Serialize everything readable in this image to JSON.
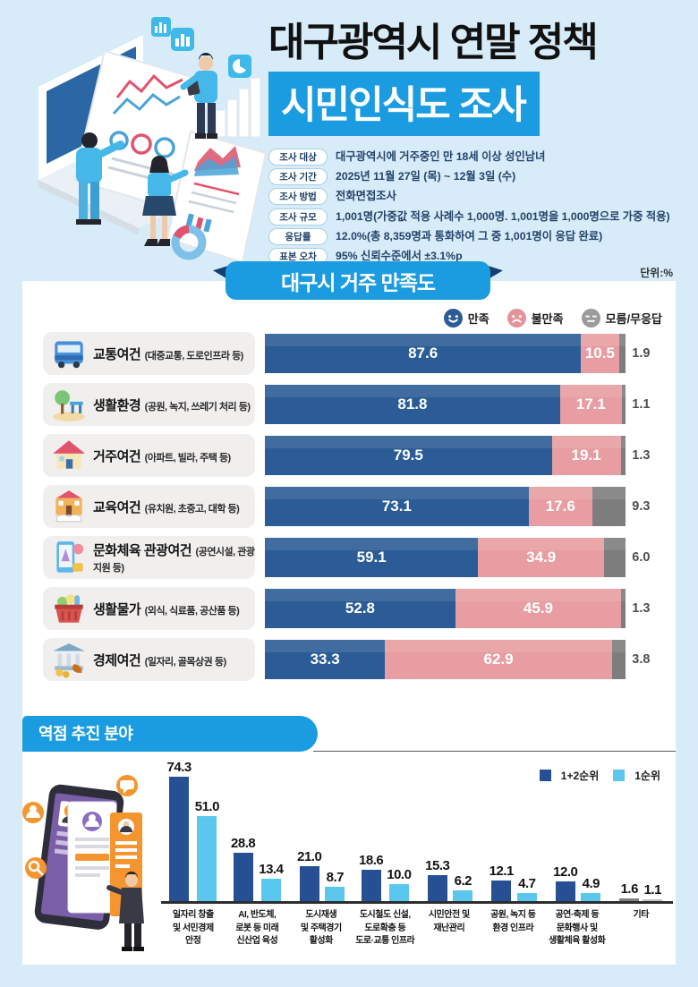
{
  "header": {
    "title_line1": "대구광역시 연말 정책",
    "title_line2": "시민인식도 조사",
    "info": [
      {
        "label": "조사 대상",
        "value": "대구광역시에 거주중인 만 18세 이상 성인남녀"
      },
      {
        "label": "조사 기간",
        "value": "2025년 11월 27일 (목) ~ 12월 3일 (수)"
      },
      {
        "label": "조사 방법",
        "value": "전화면접조사"
      },
      {
        "label": "조사 규모",
        "value": "1,001명(가중값 적용 사례수 1,000명. 1,001명을 1,000명으로 가중 적용)"
      },
      {
        "label": "응답률",
        "value": "12.0%(총 8,359명과 통화하여 그 중 1,001명이 응답 완료)"
      },
      {
        "label": "표본 오차",
        "value": "95% 신뢰수준에서 ±3.1%p"
      }
    ]
  },
  "chart_data": [
    {
      "type": "bar",
      "orientation": "horizontal-stacked",
      "title": "대구시 거주 만족도",
      "unit": "단위:%",
      "legend": [
        "만족",
        "불만족",
        "모름/무응답"
      ],
      "legend_position": "top-right",
      "colors": {
        "satisfied": "#2b5c95",
        "dissatisfied": "#e79da1",
        "unknown": "#7d7d7d"
      },
      "xlim": [
        0,
        100
      ],
      "categories": [
        {
          "title": "교통여건",
          "subtitle": "(대중교통, 도로인프라 등)",
          "icon": "bus-icon"
        },
        {
          "title": "생활환경",
          "subtitle": "(공원, 녹지, 쓰레기 처리 등)",
          "icon": "park-icon"
        },
        {
          "title": "거주여건",
          "subtitle": "(아파트, 빌라, 주택 등)",
          "icon": "house-icon"
        },
        {
          "title": "교육여건",
          "subtitle": "(유치원, 초중고, 대학 등)",
          "icon": "school-icon"
        },
        {
          "title": "문화체육 관광여건",
          "subtitle": "(공연시설, 관광지원 등)",
          "icon": "culture-icon"
        },
        {
          "title": "생활물가",
          "subtitle": "(외식, 식료품, 공산품 등)",
          "icon": "basket-icon"
        },
        {
          "title": "경제여건",
          "subtitle": "(일자리, 골목상권 등)",
          "icon": "economy-icon"
        }
      ],
      "series": [
        {
          "name": "만족",
          "values": [
            87.6,
            81.8,
            79.5,
            73.1,
            59.1,
            52.8,
            33.3
          ]
        },
        {
          "name": "불만족",
          "values": [
            10.5,
            17.1,
            19.1,
            17.6,
            34.9,
            45.9,
            62.9
          ]
        },
        {
          "name": "모름/무응답",
          "values": [
            1.9,
            1.1,
            1.3,
            9.3,
            6.0,
            1.3,
            3.8
          ]
        }
      ]
    },
    {
      "type": "bar",
      "orientation": "vertical-grouped",
      "title": "역점 추진 분야",
      "legend": [
        "1+2순위",
        "1순위"
      ],
      "legend_position": "top-right",
      "colors": {
        "primary": "#274f94",
        "secondary": "#5cc7ee",
        "other_primary": "#7f7f7f",
        "other_secondary": "#c3c3c3"
      },
      "other_category_index": 7,
      "ylim": [
        0,
        80
      ],
      "categories": [
        "일자리 창출\n및 서민경제\n안정",
        "AI, 반도체,\n로봇 등 미래\n신산업 육성",
        "도시재생\n및 주택경기\n활성화",
        "도시철도 신설,\n도로확충 등\n도로·교통 인프라",
        "시민안전 및\n재난관리",
        "공원, 녹지 등\n환경 인프라",
        "공연·축제 등\n문화행사 및\n생활체육 활성화",
        "기타"
      ],
      "series": [
        {
          "name": "1+2순위",
          "values": [
            74.3,
            28.8,
            21.0,
            18.6,
            15.3,
            12.1,
            12.0,
            1.6
          ]
        },
        {
          "name": "1순위",
          "values": [
            51.0,
            13.4,
            8.7,
            10.0,
            6.2,
            4.7,
            4.9,
            1.1
          ]
        }
      ]
    }
  ]
}
